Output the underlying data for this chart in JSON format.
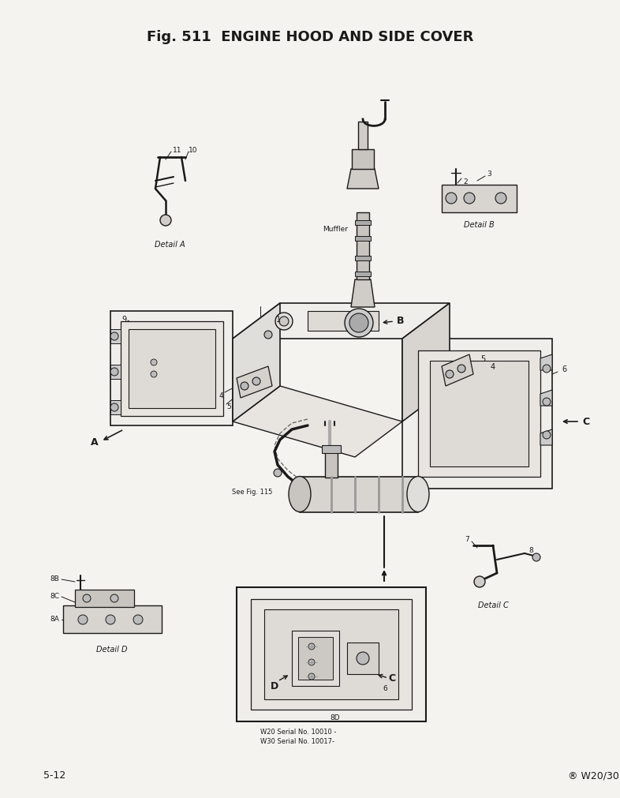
{
  "title": "Fig. 511  ENGINE HOOD AND SIDE COVER",
  "bg": "#f5f3f0",
  "lc": "#1a1a1a",
  "tc": "#1a1a1a",
  "page_left": "5-12",
  "page_right": "® W20/30",
  "serial": "W20 Serial No. 10010 -\nW30 Serial No. 10017-",
  "fig_w": 7.86,
  "fig_h": 10.12,
  "dpi": 100
}
